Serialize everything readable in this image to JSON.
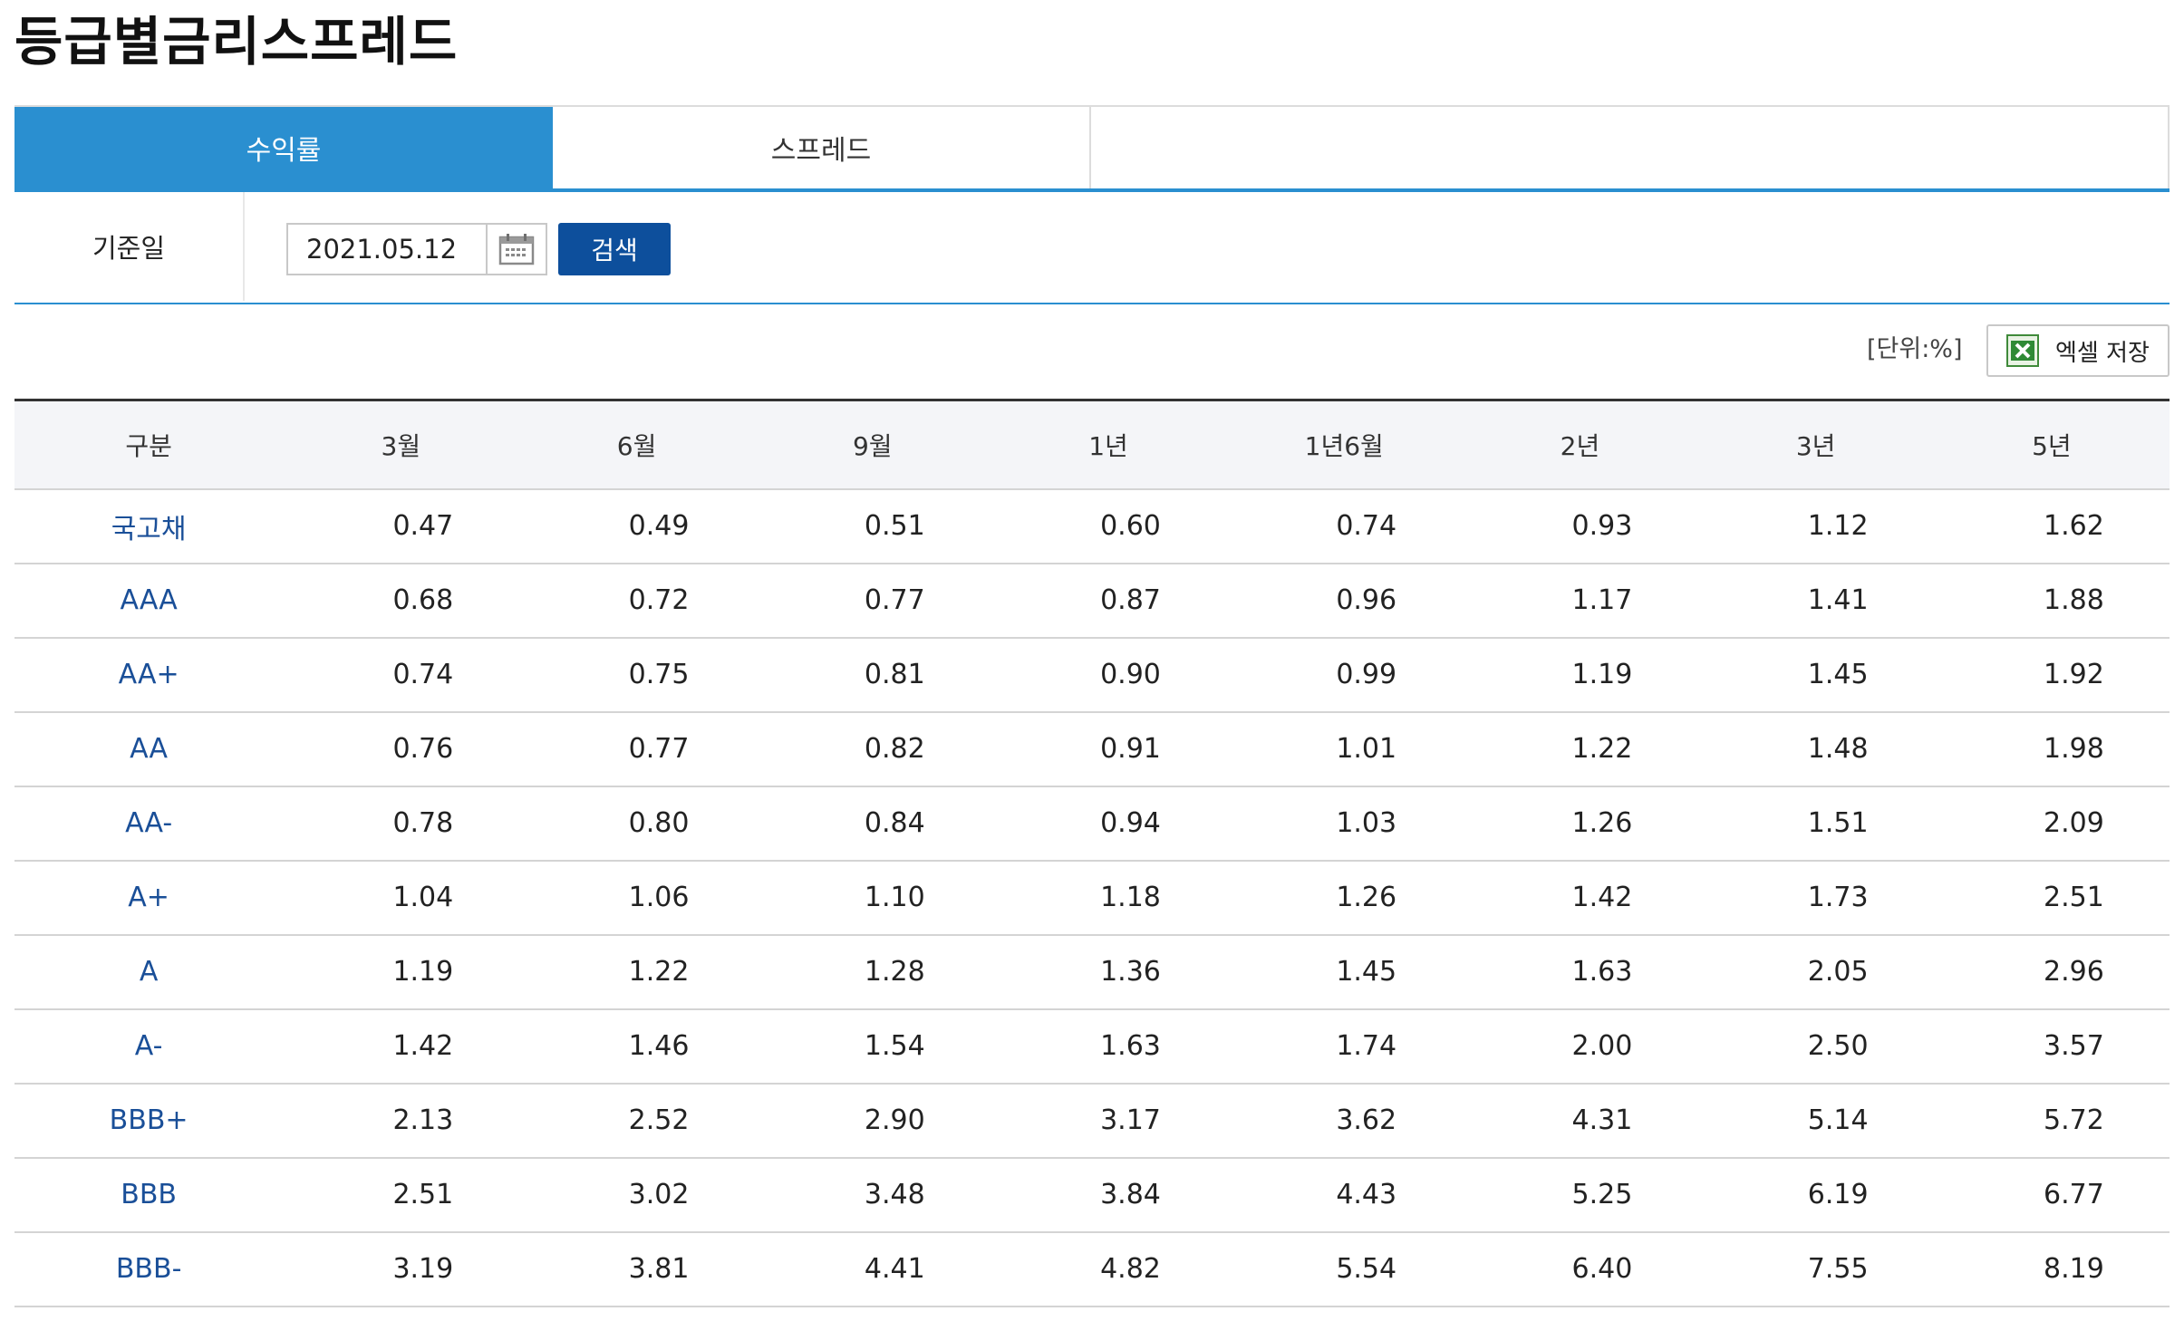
{
  "page": {
    "title": "등급별금리스프레드"
  },
  "tabs": [
    {
      "label": "수익률",
      "active": true
    },
    {
      "label": "스프레드",
      "active": false
    }
  ],
  "search": {
    "label": "기준일",
    "date_value": "2021.05.12",
    "button_label": "검색"
  },
  "toolbar": {
    "unit": "[단위:%]",
    "excel_label": "엑셀 저장"
  },
  "table": {
    "headers": [
      "구분",
      "3월",
      "6월",
      "9월",
      "1년",
      "1년6월",
      "2년",
      "3년",
      "5년"
    ],
    "rows": [
      {
        "grade": "국고채",
        "values": [
          "0.47",
          "0.49",
          "0.51",
          "0.60",
          "0.74",
          "0.93",
          "1.12",
          "1.62"
        ]
      },
      {
        "grade": "AAA",
        "values": [
          "0.68",
          "0.72",
          "0.77",
          "0.87",
          "0.96",
          "1.17",
          "1.41",
          "1.88"
        ]
      },
      {
        "grade": "AA+",
        "values": [
          "0.74",
          "0.75",
          "0.81",
          "0.90",
          "0.99",
          "1.19",
          "1.45",
          "1.92"
        ]
      },
      {
        "grade": "AA",
        "values": [
          "0.76",
          "0.77",
          "0.82",
          "0.91",
          "1.01",
          "1.22",
          "1.48",
          "1.98"
        ]
      },
      {
        "grade": "AA-",
        "values": [
          "0.78",
          "0.80",
          "0.84",
          "0.94",
          "1.03",
          "1.26",
          "1.51",
          "2.09"
        ]
      },
      {
        "grade": "A+",
        "values": [
          "1.04",
          "1.06",
          "1.10",
          "1.18",
          "1.26",
          "1.42",
          "1.73",
          "2.51"
        ]
      },
      {
        "grade": "A",
        "values": [
          "1.19",
          "1.22",
          "1.28",
          "1.36",
          "1.45",
          "1.63",
          "2.05",
          "2.96"
        ]
      },
      {
        "grade": "A-",
        "values": [
          "1.42",
          "1.46",
          "1.54",
          "1.63",
          "1.74",
          "2.00",
          "2.50",
          "3.57"
        ]
      },
      {
        "grade": "BBB+",
        "values": [
          "2.13",
          "2.52",
          "2.90",
          "3.17",
          "3.62",
          "4.31",
          "5.14",
          "5.72"
        ]
      },
      {
        "grade": "BBB",
        "values": [
          "2.51",
          "3.02",
          "3.48",
          "3.84",
          "4.43",
          "5.25",
          "6.19",
          "6.77"
        ]
      },
      {
        "grade": "BBB-",
        "values": [
          "3.19",
          "3.81",
          "4.41",
          "4.82",
          "5.54",
          "6.40",
          "7.55",
          "8.19"
        ]
      }
    ]
  },
  "icons": {
    "calendar": "calendar-icon",
    "excel": "excel-icon"
  },
  "colors": {
    "tab_active": "#2a8fd0",
    "search_button": "#0d4f9c",
    "grade_text": "#1a4f98",
    "header_bg": "#f4f5f8"
  }
}
